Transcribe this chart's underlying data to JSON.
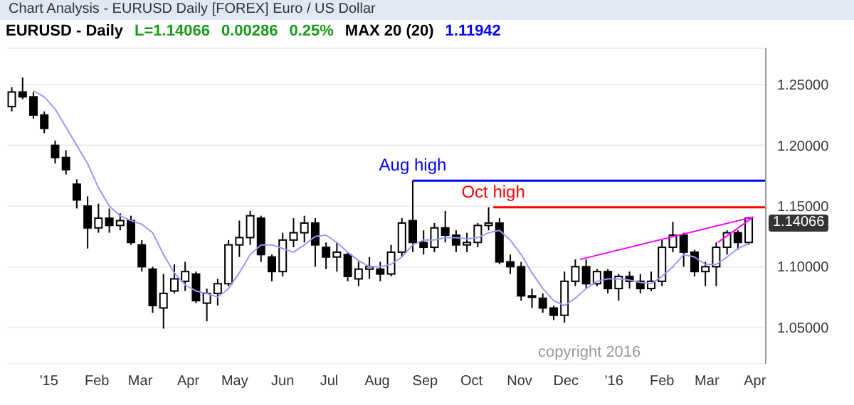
{
  "chart_data": {
    "type": "candlestick",
    "title": "EURUSD - Daily",
    "color": "#000000",
    "x": [
      "2014-12-08",
      "2014-12-15",
      "2014-12-22",
      "2014-12-29",
      "2015-01-05",
      "2015-01-12",
      "2015-01-19",
      "2015-01-26",
      "2015-02-02",
      "2015-02-09",
      "2015-02-16",
      "2015-02-23",
      "2015-03-02",
      "2015-03-09",
      "2015-03-16",
      "2015-03-23",
      "2015-03-30",
      "2015-04-06",
      "2015-04-13",
      "2015-04-20",
      "2015-04-27",
      "2015-05-04",
      "2015-05-11",
      "2015-05-18",
      "2015-05-25",
      "2015-06-01",
      "2015-06-08",
      "2015-06-15",
      "2015-06-22",
      "2015-06-29",
      "2015-07-06",
      "2015-07-13",
      "2015-07-20",
      "2015-07-27",
      "2015-08-03",
      "2015-08-10",
      "2015-08-17",
      "2015-08-24",
      "2015-08-31",
      "2015-09-07",
      "2015-09-14",
      "2015-09-21",
      "2015-09-28",
      "2015-10-05",
      "2015-10-12",
      "2015-10-19",
      "2015-10-26",
      "2015-11-02",
      "2015-11-09",
      "2015-11-16",
      "2015-11-23",
      "2015-11-30",
      "2015-12-07",
      "2015-12-14",
      "2015-12-21",
      "2015-12-28",
      "2016-01-04",
      "2016-01-11",
      "2016-01-18",
      "2016-01-25",
      "2016-02-01",
      "2016-02-08",
      "2016-02-15",
      "2016-02-22",
      "2016-02-29",
      "2016-03-07",
      "2016-03-14",
      "2016-03-21",
      "2016-03-28"
    ],
    "ohlc": [
      [
        1.232,
        1.248,
        1.228,
        1.244
      ],
      [
        1.244,
        1.256,
        1.238,
        1.24
      ],
      [
        1.24,
        1.244,
        1.222,
        1.225
      ],
      [
        1.225,
        1.228,
        1.21,
        1.214
      ],
      [
        1.2,
        1.204,
        1.185,
        1.19
      ],
      [
        1.19,
        1.196,
        1.176,
        1.18
      ],
      [
        1.168,
        1.172,
        1.148,
        1.155
      ],
      [
        1.15,
        1.158,
        1.115,
        1.132
      ],
      [
        1.132,
        1.152,
        1.128,
        1.14
      ],
      [
        1.14,
        1.148,
        1.128,
        1.134
      ],
      [
        1.134,
        1.144,
        1.13,
        1.138
      ],
      [
        1.138,
        1.142,
        1.118,
        1.12
      ],
      [
        1.118,
        1.122,
        1.096,
        1.1
      ],
      [
        1.098,
        1.1,
        1.062,
        1.068
      ],
      [
        1.066,
        1.094,
        1.049,
        1.078
      ],
      [
        1.08,
        1.102,
        1.078,
        1.09
      ],
      [
        1.088,
        1.104,
        1.08,
        1.096
      ],
      [
        1.094,
        1.096,
        1.07,
        1.072
      ],
      [
        1.07,
        1.082,
        1.055,
        1.078
      ],
      [
        1.078,
        1.09,
        1.068,
        1.086
      ],
      [
        1.086,
        1.122,
        1.084,
        1.118
      ],
      [
        1.118,
        1.138,
        1.108,
        1.124
      ],
      [
        1.124,
        1.146,
        1.118,
        1.142
      ],
      [
        1.14,
        1.142,
        1.104,
        1.11
      ],
      [
        1.108,
        1.11,
        1.088,
        1.096
      ],
      [
        1.096,
        1.128,
        1.092,
        1.122
      ],
      [
        1.122,
        1.14,
        1.116,
        1.128
      ],
      [
        1.128,
        1.142,
        1.12,
        1.136
      ],
      [
        1.136,
        1.14,
        1.1,
        1.118
      ],
      [
        1.116,
        1.12,
        1.098,
        1.108
      ],
      [
        1.108,
        1.12,
        1.096,
        1.112
      ],
      [
        1.11,
        1.112,
        1.088,
        1.092
      ],
      [
        1.09,
        1.104,
        1.084,
        1.098
      ],
      [
        1.098,
        1.108,
        1.09,
        1.1
      ],
      [
        1.098,
        1.104,
        1.088,
        1.094
      ],
      [
        1.094,
        1.118,
        1.092,
        1.112
      ],
      [
        1.112,
        1.14,
        1.108,
        1.136
      ],
      [
        1.138,
        1.171,
        1.112,
        1.12
      ],
      [
        1.12,
        1.13,
        1.11,
        1.116
      ],
      [
        1.116,
        1.136,
        1.112,
        1.132
      ],
      [
        1.132,
        1.146,
        1.12,
        1.126
      ],
      [
        1.126,
        1.13,
        1.112,
        1.118
      ],
      [
        1.118,
        1.128,
        1.112,
        1.12
      ],
      [
        1.12,
        1.136,
        1.116,
        1.134
      ],
      [
        1.134,
        1.149,
        1.13,
        1.136
      ],
      [
        1.136,
        1.14,
        1.102,
        1.104
      ],
      [
        1.104,
        1.11,
        1.094,
        1.1
      ],
      [
        1.1,
        1.104,
        1.072,
        1.076
      ],
      [
        1.076,
        1.082,
        1.066,
        1.076
      ],
      [
        1.074,
        1.078,
        1.062,
        1.066
      ],
      [
        1.066,
        1.068,
        1.056,
        1.06
      ],
      [
        1.06,
        1.096,
        1.054,
        1.088
      ],
      [
        1.088,
        1.106,
        1.084,
        1.1
      ],
      [
        1.1,
        1.106,
        1.082,
        1.086
      ],
      [
        1.086,
        1.098,
        1.084,
        1.096
      ],
      [
        1.096,
        1.098,
        1.078,
        1.082
      ],
      [
        1.082,
        1.094,
        1.072,
        1.092
      ],
      [
        1.092,
        1.096,
        1.082,
        1.088
      ],
      [
        1.088,
        1.094,
        1.078,
        1.082
      ],
      [
        1.082,
        1.096,
        1.08,
        1.088
      ],
      [
        1.088,
        1.122,
        1.084,
        1.116
      ],
      [
        1.116,
        1.137,
        1.112,
        1.126
      ],
      [
        1.126,
        1.128,
        1.1,
        1.112
      ],
      [
        1.112,
        1.114,
        1.092,
        1.096
      ],
      [
        1.096,
        1.104,
        1.084,
        1.1
      ],
      [
        1.1,
        1.12,
        1.084,
        1.116
      ],
      [
        1.116,
        1.13,
        1.11,
        1.128
      ],
      [
        1.128,
        1.13,
        1.114,
        1.12
      ],
      [
        1.12,
        1.141,
        1.118,
        1.14
      ]
    ],
    "series": [
      {
        "type": "line",
        "color": "#9999ff",
        "values": [
          null,
          null,
          1.245,
          1.24,
          1.23,
          1.215,
          1.2,
          1.185,
          1.165,
          1.15,
          1.142,
          1.138,
          1.135,
          1.128,
          1.11,
          1.095,
          1.085,
          1.08,
          1.078,
          1.075,
          1.082,
          1.095,
          1.11,
          1.118,
          1.118,
          1.115,
          1.112,
          1.118,
          1.125,
          1.126,
          1.12,
          1.112,
          1.105,
          1.1,
          1.1,
          1.102,
          1.108,
          1.118,
          1.122,
          1.122,
          1.124,
          1.124,
          1.123,
          1.124,
          1.128,
          1.13,
          1.122,
          1.11,
          1.095,
          1.082,
          1.072,
          1.068,
          1.074,
          1.082,
          1.088,
          1.09,
          1.09,
          1.089,
          1.087,
          1.086,
          1.092,
          1.1,
          1.11,
          1.108,
          1.102,
          1.102,
          1.108,
          1.115,
          1.119
        ]
      },
      {
        "type": "line",
        "name": "Aug high",
        "color": "#0000ff",
        "x": [
          "2015-08-24",
          "2016-04-08"
        ],
        "values": [
          1.171,
          1.171
        ]
      },
      {
        "type": "line",
        "name": "Oct high",
        "color": "#ff0000",
        "x": [
          "2015-10-15",
          "2016-04-08"
        ],
        "values": [
          1.149,
          1.149
        ]
      },
      {
        "type": "line",
        "color": "#ff00ff",
        "x": [
          "2015-12-10",
          "2016-03-31"
        ],
        "values": [
          1.106,
          1.141
        ]
      },
      {
        "type": "line",
        "color": "#ff00ff",
        "x": [
          "2016-03-08",
          "2016-03-31"
        ],
        "values": [
          1.12,
          1.141
        ]
      }
    ],
    "xlim": [
      "2014-12-05",
      "2016-04-08"
    ],
    "xticks": [
      {
        "value": "2015-01-01",
        "label": "'15"
      },
      {
        "value": "2015-02-01",
        "label": "Feb"
      },
      {
        "value": "2015-03-01",
        "label": "Mar"
      },
      {
        "value": "2015-04-01",
        "label": "Apr"
      },
      {
        "value": "2015-05-01",
        "label": "May"
      },
      {
        "value": "2015-06-01",
        "label": "Jun"
      },
      {
        "value": "2015-07-01",
        "label": "Jul"
      },
      {
        "value": "2015-08-01",
        "label": "Aug"
      },
      {
        "value": "2015-09-01",
        "label": "Sep"
      },
      {
        "value": "2015-10-01",
        "label": "Oct"
      },
      {
        "value": "2015-11-01",
        "label": "Nov"
      },
      {
        "value": "2015-12-01",
        "label": "Dec"
      },
      {
        "value": "2016-01-01",
        "label": "'16"
      },
      {
        "value": "2016-02-01",
        "label": "Feb"
      },
      {
        "value": "2016-03-01",
        "label": "Mar"
      },
      {
        "value": "2016-04-01",
        "label": "Apr"
      }
    ],
    "ylim": [
      1.02,
      1.28
    ],
    "yticks": [
      {
        "value": 1.05,
        "label": "1.05000"
      },
      {
        "value": 1.1,
        "label": "1.10000"
      },
      {
        "value": 1.15,
        "label": "1.15000"
      },
      {
        "value": 1.2,
        "label": "1.20000"
      },
      {
        "value": 1.25,
        "label": "1.25000"
      }
    ],
    "grid": "y",
    "annotations": [
      "Chart Analysis - EURUSD Daily [FOREX] Euro / US Dollar",
      "L=1.14066",
      "0.00286",
      "0.25%",
      "MAX 20 (20)",
      "1.11942",
      "1.14066",
      "copyright 2016"
    ]
  }
}
